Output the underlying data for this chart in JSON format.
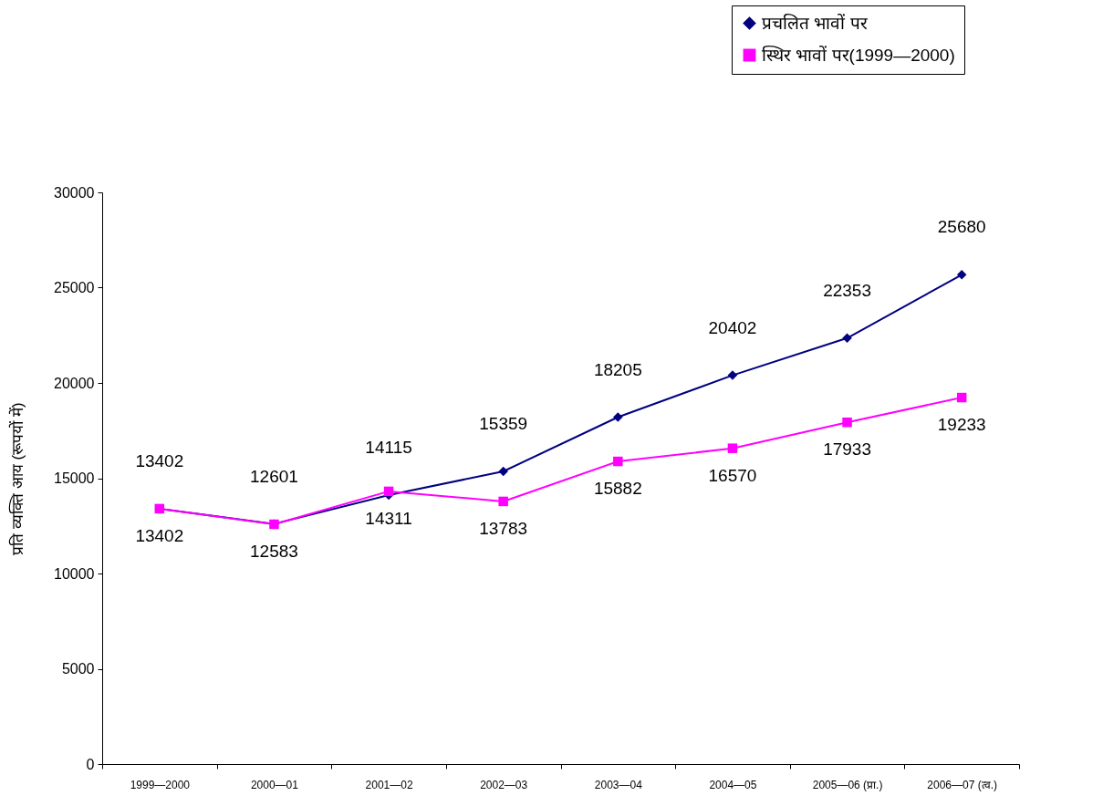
{
  "chart_data": {
    "type": "line",
    "ylabel": "प्रति व्यक्ति आय (रूपयों में)",
    "categories": [
      "1999—2000",
      "2000—01",
      "2001—02",
      "2002—03",
      "2003—04",
      "2004—05",
      "2005—06 (प्रा.)",
      "2006—07 (त्व.)"
    ],
    "series": [
      {
        "name": "प्रचलित भावों पर",
        "color": "#000080",
        "marker": "diamond",
        "values": [
          13402,
          12601,
          14115,
          15359,
          18205,
          20402,
          22353,
          25680
        ]
      },
      {
        "name": "स्थिर भावों पर(1999—2000)",
        "color": "#ff00ff",
        "marker": "square",
        "values": [
          13402,
          12583,
          14311,
          13783,
          15882,
          16570,
          17933,
          19233
        ]
      }
    ],
    "ylim": [
      0,
      30000
    ],
    "yticks": [
      0,
      5000,
      10000,
      15000,
      20000,
      25000,
      30000
    ],
    "grid": false,
    "legend": "top right",
    "data_labels": true
  }
}
